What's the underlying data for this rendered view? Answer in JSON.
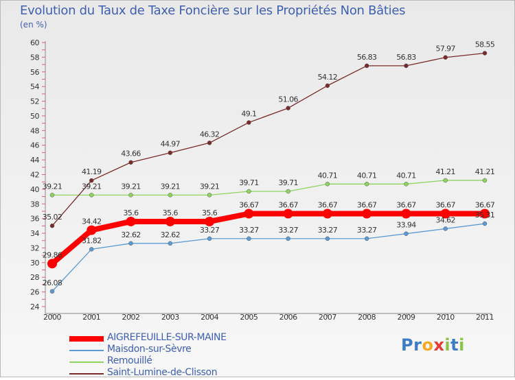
{
  "chart_data": {
    "type": "line",
    "title": "Evolution du Taux de Taxe Foncière sur les Propriétés Non Bâties",
    "unit_label": "(en %)",
    "x": [
      "2000",
      "2001",
      "2002",
      "2003",
      "2004",
      "2005",
      "2006",
      "2007",
      "2008",
      "2009",
      "2010",
      "2011"
    ],
    "ylim": [
      24,
      60
    ],
    "y_ticks": [
      24,
      26,
      28,
      30,
      32,
      34,
      36,
      38,
      40,
      42,
      44,
      46,
      48,
      50,
      52,
      54,
      56,
      58,
      60
    ],
    "grid": false,
    "legend_position": "bottom-left",
    "series": [
      {
        "name": "AIGREFEUILLE-SUR-MAINE",
        "color": "#ff0000",
        "emphasis": true,
        "values": [
          29.86,
          34.42,
          35.6,
          35.6,
          35.6,
          36.67,
          36.67,
          36.67,
          36.67,
          36.67,
          36.67,
          36.67
        ],
        "labels": [
          "29.86",
          "34.42",
          "35.6",
          "35.6",
          "35.6",
          "36.67",
          "36.67",
          "36.67",
          "36.67",
          "36.67",
          "36.67",
          "36.67"
        ]
      },
      {
        "name": "Maisdon-sur-Sèvre",
        "color": "#5b9bd5",
        "emphasis": false,
        "values": [
          26.08,
          31.82,
          32.62,
          32.62,
          33.27,
          33.27,
          33.27,
          33.27,
          33.27,
          33.94,
          34.62,
          35.31
        ],
        "labels": [
          "26.08",
          "31.82",
          "32.62",
          "32.62",
          "33.27",
          "33.27",
          "33.27",
          "33.27",
          "33.27",
          "33.94",
          "34.62",
          "35.31"
        ]
      },
      {
        "name": "Remouillé",
        "color": "#8fd35f",
        "emphasis": false,
        "values": [
          39.21,
          39.21,
          39.21,
          39.21,
          39.21,
          39.71,
          39.71,
          40.71,
          40.71,
          40.71,
          41.21,
          41.21
        ],
        "labels": [
          "39.21",
          "39.21",
          "39.21",
          "39.21",
          "39.21",
          "39.71",
          "39.71",
          "40.71",
          "40.71",
          "40.71",
          "41.21",
          "41.21"
        ]
      },
      {
        "name": "Saint-Lumine-de-Clisson",
        "color": "#7a2a2a",
        "emphasis": false,
        "values": [
          35.02,
          41.19,
          43.66,
          44.97,
          46.32,
          49.1,
          51.06,
          54.12,
          56.83,
          56.83,
          57.97,
          58.55
        ],
        "labels": [
          "35.02",
          "41.19",
          "43.66",
          "44.97",
          "46.32",
          "49.1",
          "51.06",
          "54.12",
          "56.83",
          "56.83",
          "57.97",
          "58.55"
        ]
      }
    ]
  },
  "logo": {
    "letters": [
      "P",
      "r",
      "o",
      "x",
      "i",
      "t",
      "i"
    ],
    "colors": [
      "#3b7dc4",
      "#3b7dc4",
      "#f5a623",
      "#e53935",
      "#8bc34a",
      "#3b7dc4",
      "#8bc34a"
    ]
  }
}
